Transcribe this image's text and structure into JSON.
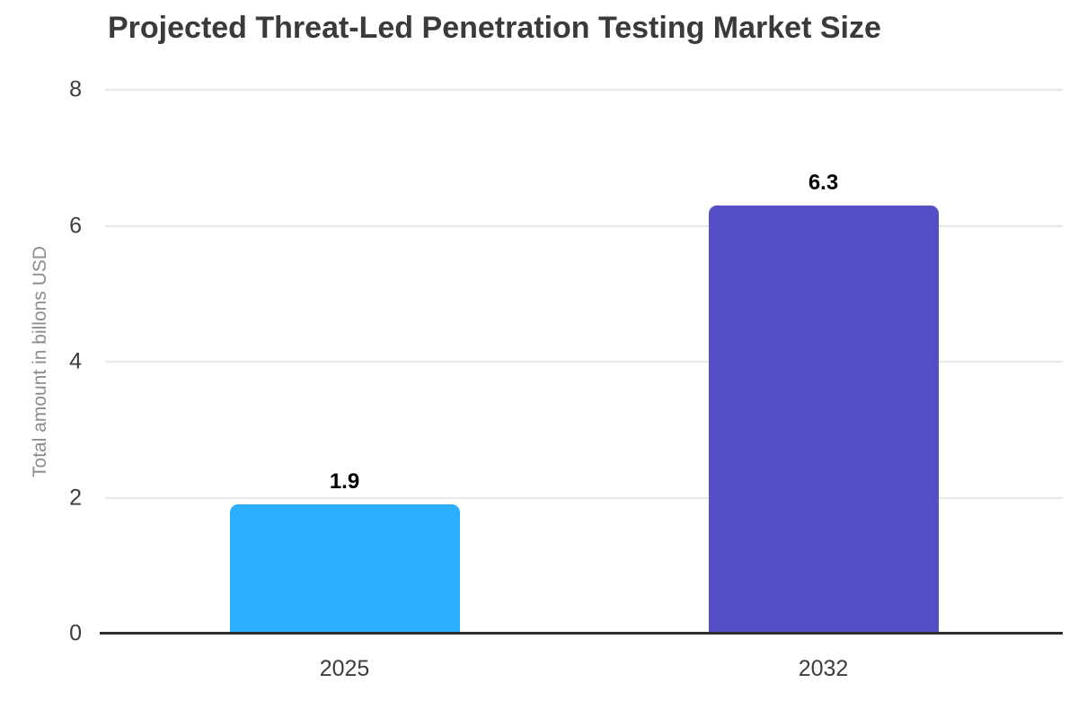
{
  "chart_data": {
    "type": "bar",
    "title": "Projected Threat-Led Penetration Testing Market Size",
    "xlabel": "",
    "ylabel": "Total amount in billons USD",
    "categories": [
      "2025",
      "2032"
    ],
    "values": [
      1.9,
      6.3
    ],
    "value_labels": [
      "1.9",
      "6.3"
    ],
    "bar_colors": [
      "#2CAFFE",
      "#544FC5"
    ],
    "ylim": [
      0,
      8
    ],
    "yticks": [
      0,
      2,
      4,
      6,
      8
    ],
    "grid": true,
    "legend": false,
    "background": "#ffffff",
    "colors": {
      "title": "#3a3a3a",
      "axis_title": "#8c8c8c",
      "tick_label": "#3d3d3d",
      "grid": "#e8e8e8",
      "baseline": "#2e2e2e",
      "value_label": "#000000"
    }
  }
}
